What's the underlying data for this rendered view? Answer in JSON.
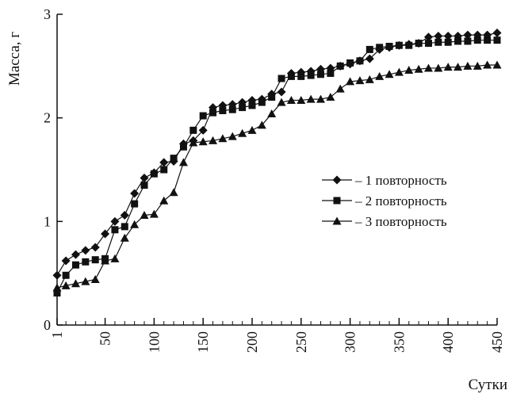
{
  "chart_data": {
    "type": "line",
    "title": "",
    "xlabel": "Сутки",
    "ylabel": "Масса, г",
    "xlim": [
      1,
      450
    ],
    "ylim": [
      0,
      3
    ],
    "x_ticks": [
      1,
      50,
      100,
      150,
      200,
      250,
      300,
      350,
      400,
      450
    ],
    "y_ticks": [
      0,
      1,
      2,
      3
    ],
    "grid": false,
    "legend_position": "right",
    "series": [
      {
        "name": "– 1 повторность",
        "marker": "diamond",
        "color": "#111111",
        "x": [
          1,
          10,
          20,
          30,
          40,
          50,
          60,
          70,
          80,
          90,
          100,
          110,
          120,
          130,
          140,
          150,
          160,
          170,
          180,
          190,
          200,
          210,
          220,
          230,
          240,
          250,
          260,
          270,
          280,
          290,
          300,
          310,
          320,
          330,
          340,
          350,
          360,
          370,
          380,
          390,
          400,
          410,
          420,
          430,
          440,
          450
        ],
        "y": [
          0.48,
          0.62,
          0.68,
          0.72,
          0.75,
          0.88,
          1.0,
          1.06,
          1.27,
          1.42,
          1.47,
          1.57,
          1.58,
          1.75,
          1.78,
          1.88,
          2.1,
          2.12,
          2.13,
          2.15,
          2.17,
          2.18,
          2.23,
          2.25,
          2.43,
          2.44,
          2.45,
          2.47,
          2.48,
          2.5,
          2.52,
          2.55,
          2.57,
          2.66,
          2.68,
          2.7,
          2.71,
          2.72,
          2.78,
          2.79,
          2.79,
          2.79,
          2.8,
          2.8,
          2.8,
          2.82
        ]
      },
      {
        "name": "– 2 повторность",
        "marker": "square",
        "color": "#111111",
        "x": [
          1,
          10,
          20,
          30,
          40,
          50,
          60,
          70,
          80,
          90,
          100,
          110,
          120,
          130,
          140,
          150,
          160,
          170,
          180,
          190,
          200,
          210,
          220,
          230,
          240,
          250,
          260,
          270,
          280,
          290,
          300,
          310,
          320,
          330,
          340,
          350,
          360,
          370,
          380,
          390,
          400,
          410,
          420,
          430,
          440,
          450
        ],
        "y": [
          0.31,
          0.48,
          0.58,
          0.61,
          0.63,
          0.64,
          0.92,
          0.95,
          1.17,
          1.35,
          1.46,
          1.5,
          1.61,
          1.72,
          1.88,
          2.02,
          2.05,
          2.07,
          2.08,
          2.1,
          2.12,
          2.15,
          2.2,
          2.38,
          2.4,
          2.4,
          2.41,
          2.42,
          2.43,
          2.5,
          2.53,
          2.55,
          2.66,
          2.68,
          2.69,
          2.7,
          2.7,
          2.72,
          2.72,
          2.73,
          2.73,
          2.74,
          2.74,
          2.75,
          2.75,
          2.75
        ]
      },
      {
        "name": "– 3 повторность",
        "marker": "triangle",
        "color": "#111111",
        "x": [
          1,
          10,
          20,
          30,
          40,
          50,
          60,
          70,
          80,
          90,
          100,
          110,
          120,
          130,
          140,
          150,
          160,
          170,
          180,
          190,
          200,
          210,
          220,
          230,
          240,
          250,
          260,
          270,
          280,
          290,
          300,
          310,
          320,
          330,
          340,
          350,
          360,
          370,
          380,
          390,
          400,
          410,
          420,
          430,
          440,
          450
        ],
        "y": [
          0.36,
          0.38,
          0.4,
          0.42,
          0.44,
          0.62,
          0.64,
          0.84,
          0.97,
          1.06,
          1.07,
          1.2,
          1.28,
          1.57,
          1.76,
          1.77,
          1.78,
          1.8,
          1.82,
          1.85,
          1.88,
          1.93,
          2.04,
          2.15,
          2.17,
          2.17,
          2.18,
          2.18,
          2.2,
          2.28,
          2.35,
          2.36,
          2.37,
          2.4,
          2.42,
          2.44,
          2.46,
          2.47,
          2.48,
          2.48,
          2.49,
          2.49,
          2.5,
          2.5,
          2.51,
          2.51
        ]
      }
    ]
  }
}
